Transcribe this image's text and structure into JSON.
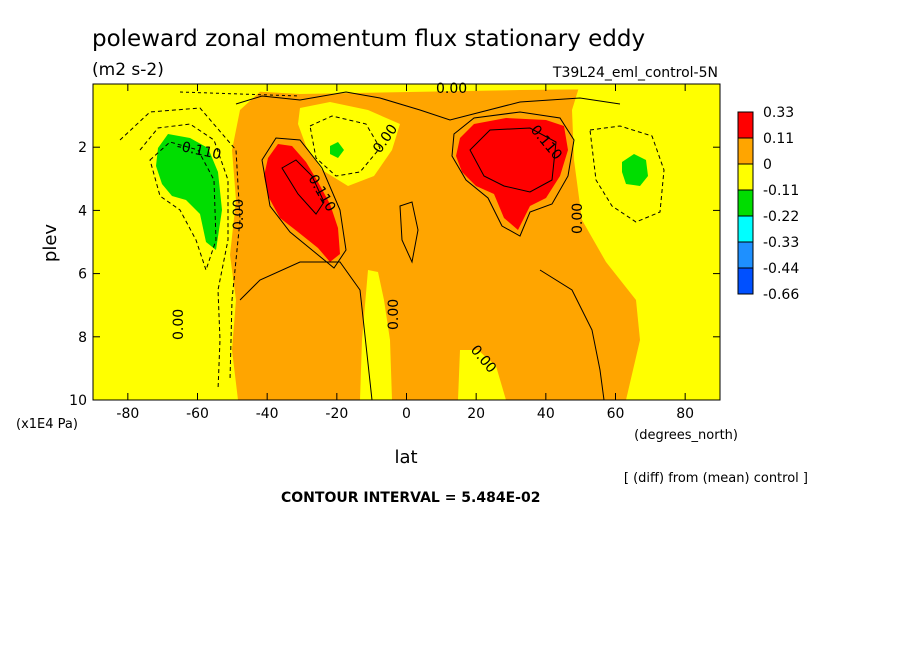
{
  "chart_data": {
    "type": "heatmap",
    "title": "poleward zonal momentum flux stationary eddy",
    "units": "(m2 s-2)",
    "experiment": "T39L24_eml_control-5N",
    "xlabel": "lat",
    "xunits": "(degrees_north)",
    "ylabel": "plev",
    "yunits": "(x1E4 Pa)",
    "xlim": [
      -90,
      90
    ],
    "ylim": [
      10,
      0
    ],
    "xticks": [
      "-80",
      "-60",
      "-40",
      "-20",
      "0",
      "20",
      "40",
      "60",
      "80"
    ],
    "yticks": [
      "2",
      "4",
      "6",
      "8",
      "10"
    ],
    "legend": {
      "placement": "right",
      "boundaries": [
        "0.33",
        "0.11",
        "0",
        "-0.11",
        "-0.22",
        "-0.33",
        "-0.44",
        "-0.66"
      ],
      "colors": [
        "#ff0000",
        "#ffa500",
        "#ffff00",
        "#00dd00",
        "#00ffff",
        "#1e90ff",
        "#0050ff"
      ]
    },
    "contour_interval_text": "CONTOUR INTERVAL = 5.484E-02",
    "footnote": "[ (diff) from (mean) control ]",
    "contour_labels": [
      "0.00",
      "-0.110",
      "0.00",
      "0.110",
      "0.00",
      "0.110",
      "0.00",
      "0.00",
      "0.00",
      "0.00"
    ],
    "features": [
      {
        "sign": "negative",
        "lat": -62,
        "plev": 3.2,
        "peak": -0.14
      },
      {
        "sign": "positive",
        "lat": -28,
        "plev": 3.6,
        "peak": 0.17
      },
      {
        "sign": "negative",
        "lat": -20,
        "plev": 2.1,
        "peak": -0.12
      },
      {
        "sign": "positive",
        "lat": 32,
        "plev": 2.8,
        "peak": 0.19
      },
      {
        "sign": "negative",
        "lat": 63,
        "plev": 2.8,
        "peak": -0.12
      }
    ]
  }
}
